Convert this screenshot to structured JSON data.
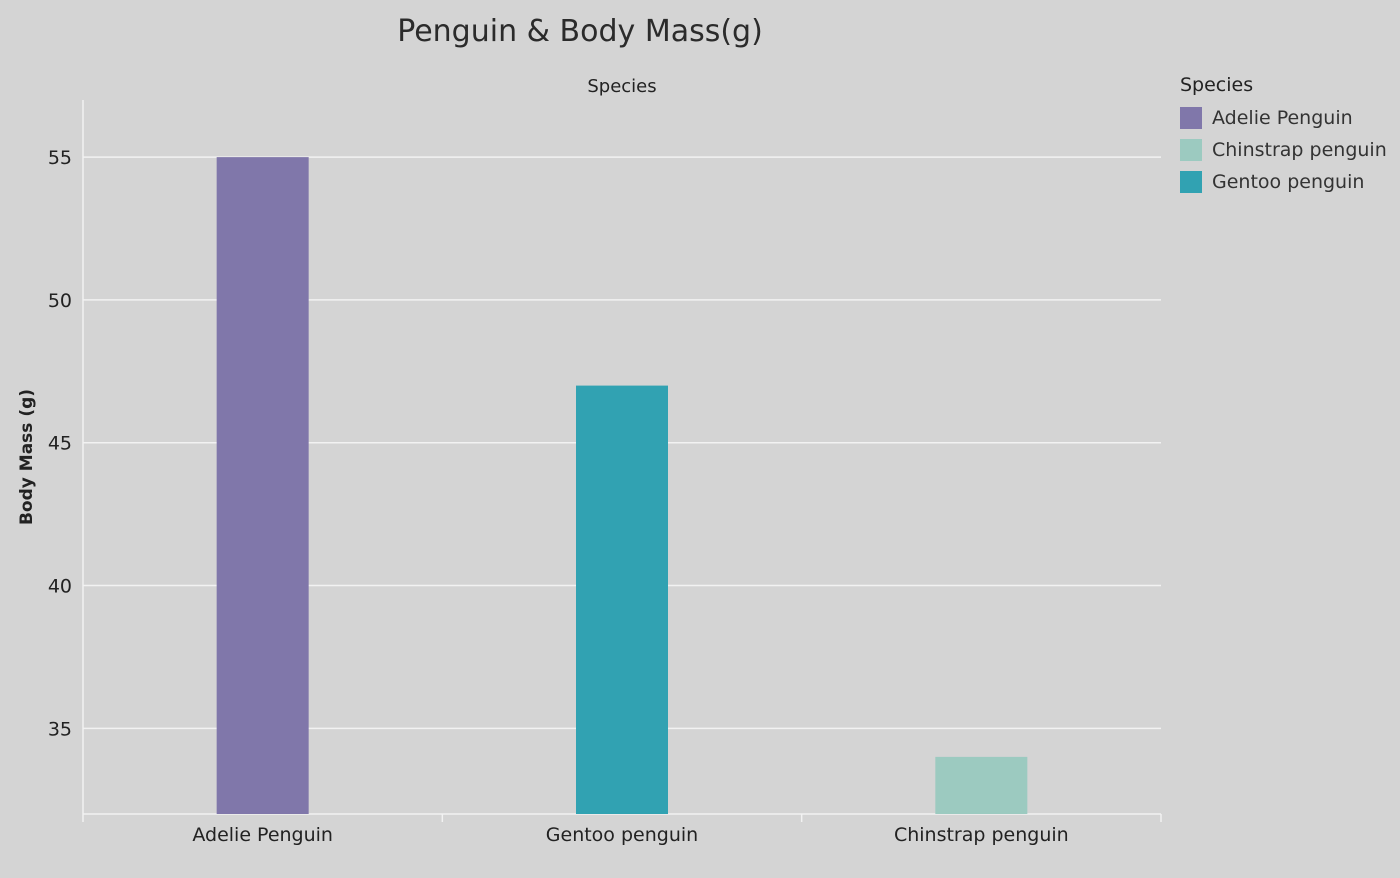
{
  "chart_data": {
    "type": "bar",
    "title": "Penguin & Body Mass(g)",
    "column_header": "Species",
    "ylabel": "Body Mass (g)",
    "xlabel": "",
    "categories": [
      "Adelie Penguin",
      "Gentoo penguin",
      "Chinstrap penguin"
    ],
    "values": [
      55,
      47,
      34
    ],
    "colors": [
      "#8077aa",
      "#31a2b2",
      "#9ccac0"
    ],
    "ylim": [
      32,
      57
    ],
    "yticks": [
      35,
      40,
      45,
      50,
      55
    ],
    "grid": true,
    "legend_position": "right",
    "legend": {
      "title": "Species",
      "items": [
        {
          "label": "Adelie Penguin",
          "color": "#8077aa"
        },
        {
          "label": "Chinstrap penguin",
          "color": "#9ccac0"
        },
        {
          "label": "Gentoo penguin",
          "color": "#31a2b2"
        }
      ]
    }
  }
}
